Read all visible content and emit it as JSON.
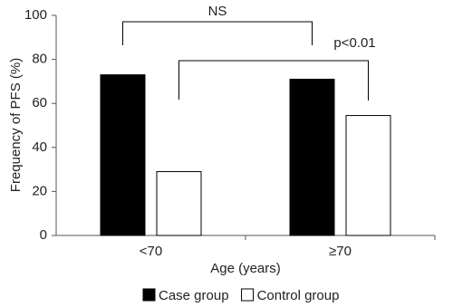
{
  "chart_data": {
    "type": "bar",
    "categories": [
      "<70",
      "≥70"
    ],
    "series": [
      {
        "name": "Case group",
        "color": "#000000",
        "values": [
          73,
          71
        ]
      },
      {
        "name": "Control group",
        "color": "#ffffff",
        "values": [
          29,
          54.5
        ]
      }
    ],
    "ylim": [
      0,
      100
    ],
    "yticks": [
      0,
      20,
      40,
      60,
      80,
      100
    ],
    "ylabel": "Frequency of PFS (%)",
    "xlabel": "Age (years)",
    "annotations": [
      "NS",
      "p<0.01"
    ],
    "grid": false,
    "legend": "bottom"
  }
}
